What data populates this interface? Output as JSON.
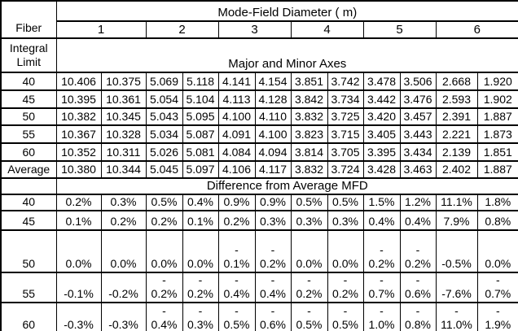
{
  "table": {
    "fiber_label": "Fiber",
    "integral_limit_label": "Integral\nLimit",
    "mfd_header": "Mode-Field Diameter ( m)",
    "fiber_numbers": [
      "1",
      "2",
      "3",
      "4",
      "5",
      "6"
    ],
    "sections": [
      {
        "title": "Major and Minor Axes",
        "rows": [
          {
            "label": "40",
            "values": [
              "10.406",
              "10.375",
              "5.069",
              "5.118",
              "4.141",
              "4.154",
              "3.851",
              "3.742",
              "3.478",
              "3.506",
              "2.668",
              "1.920"
            ]
          },
          {
            "label": "45",
            "values": [
              "10.395",
              "10.361",
              "5.054",
              "5.104",
              "4.113",
              "4.128",
              "3.842",
              "3.734",
              "3.442",
              "3.476",
              "2.593",
              "1.902"
            ]
          },
          {
            "label": "50",
            "values": [
              "10.382",
              "10.345",
              "5.043",
              "5.095",
              "4.100",
              "4.110",
              "3.832",
              "3.725",
              "3.420",
              "3.457",
              "2.391",
              "1.887"
            ]
          },
          {
            "label": "55",
            "values": [
              "10.367",
              "10.328",
              "5.034",
              "5.087",
              "4.091",
              "4.100",
              "3.823",
              "3.715",
              "3.405",
              "3.443",
              "2.221",
              "1.873"
            ]
          },
          {
            "label": "60",
            "values": [
              "10.352",
              "10.311",
              "5.026",
              "5.081",
              "4.084",
              "4.094",
              "3.814",
              "3.705",
              "3.395",
              "3.434",
              "2.139",
              "1.851"
            ]
          },
          {
            "label": "Average",
            "values": [
              "10.380",
              "10.344",
              "5.045",
              "5.097",
              "4.106",
              "4.117",
              "3.832",
              "3.724",
              "3.428",
              "3.463",
              "2.402",
              "1.887"
            ]
          }
        ]
      },
      {
        "title": "Difference from Average MFD",
        "rows": [
          {
            "label": "40",
            "values": [
              "0.2%",
              "0.3%",
              "0.5%",
              "0.4%",
              "0.9%",
              "0.9%",
              "0.5%",
              "0.5%",
              "1.5%",
              "1.2%",
              "11.1%",
              "1.8%"
            ]
          },
          {
            "label": "45",
            "values": [
              "0.1%",
              "0.2%",
              "0.2%",
              "0.1%",
              "0.2%",
              "0.3%",
              "0.3%",
              "0.3%",
              "0.4%",
              "0.4%",
              "7.9%",
              "0.8%"
            ]
          },
          {
            "label": "50",
            "values": [
              "0.0%",
              "0.0%",
              "0.0%",
              "0.0%",
              "-\n0.1%",
              "-\n0.2%",
              "0.0%",
              "0.0%",
              "-\n0.2%",
              "-\n0.2%",
              "-0.5%",
              "0.0%"
            ]
          },
          {
            "label": "55",
            "values": [
              "-0.1%",
              "-0.2%",
              "-\n0.2%",
              "-\n0.2%",
              "-\n0.4%",
              "-\n0.4%",
              "-\n0.2%",
              "-\n0.2%",
              "-\n0.7%",
              "-\n0.6%",
              "-7.6%",
              "-\n0.7%"
            ]
          },
          {
            "label": "60",
            "values": [
              "-0.3%",
              "-0.3%",
              "-\n0.4%",
              "-\n0.3%",
              "-\n0.5%",
              "-\n0.6%",
              "-\n0.5%",
              "-\n0.5%",
              "-\n1.0%",
              "-\n0.8%",
              "-\n11.0%",
              "-\n1.9%"
            ]
          }
        ]
      }
    ]
  },
  "colors": {
    "border": "#000000",
    "text": "#000000",
    "background": "#ffffff"
  }
}
